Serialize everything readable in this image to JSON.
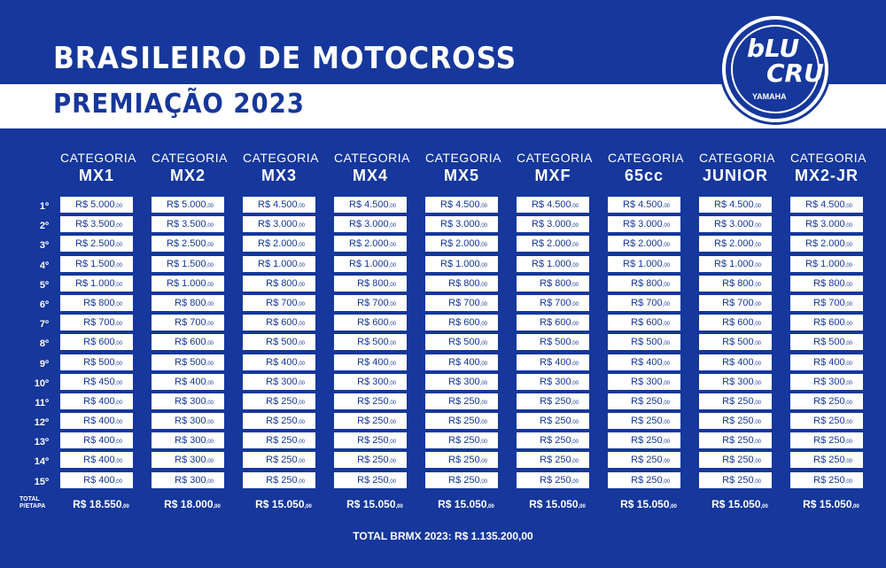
{
  "title": "BRASILEIRO DE MOTOCROSS",
  "subtitle": "PREMIAÇÃO 2023",
  "logo": {
    "line1": "bLU",
    "line2": "CRU",
    "brand": "YAMAHA"
  },
  "positions": [
    "1º",
    "2º",
    "3º",
    "4º",
    "5º",
    "6º",
    "7º",
    "8º",
    "9º",
    "10º",
    "11º",
    "12º",
    "13º",
    "14º",
    "15º"
  ],
  "total_label_1": "TOTAL",
  "total_label_2": "P/ETAPA",
  "categories": [
    {
      "label": "CATEGORIA",
      "name": "MX1",
      "prizes": [
        "R$ 5.000",
        "R$ 3.500",
        "R$ 2.500",
        "R$ 1.500",
        "R$ 1.000",
        "R$ 800",
        "R$ 700",
        "R$ 600",
        "R$ 500",
        "R$ 450",
        "R$ 400",
        "R$ 400",
        "R$ 400",
        "R$ 400",
        "R$ 400"
      ],
      "total": "R$ 18.550"
    },
    {
      "label": "CATEGORIA",
      "name": "MX2",
      "prizes": [
        "R$ 5.000",
        "R$ 3.500",
        "R$ 2.500",
        "R$ 1.500",
        "R$ 1.000",
        "R$ 800",
        "R$ 700",
        "R$ 600",
        "R$ 500",
        "R$ 400",
        "R$ 300",
        "R$ 300",
        "R$ 300",
        "R$ 300",
        "R$ 300"
      ],
      "total": "R$ 18.000"
    },
    {
      "label": "CATEGORIA",
      "name": "MX3",
      "prizes": [
        "R$ 4.500",
        "R$ 3.000",
        "R$ 2.000",
        "R$ 1.000",
        "R$ 800",
        "R$ 700",
        "R$ 600",
        "R$ 500",
        "R$ 400",
        "R$ 300",
        "R$ 250",
        "R$ 250",
        "R$ 250",
        "R$ 250",
        "R$ 250"
      ],
      "total": "R$ 15.050"
    },
    {
      "label": "CATEGORIA",
      "name": "MX4",
      "prizes": [
        "R$ 4.500",
        "R$ 3.000",
        "R$ 2.000",
        "R$ 1.000",
        "R$ 800",
        "R$ 700",
        "R$ 600",
        "R$ 500",
        "R$ 400",
        "R$ 300",
        "R$ 250",
        "R$ 250",
        "R$ 250",
        "R$ 250",
        "R$ 250"
      ],
      "total": "R$ 15.050"
    },
    {
      "label": "CATEGORIA",
      "name": "MX5",
      "prizes": [
        "R$ 4.500",
        "R$ 3.000",
        "R$ 2.000",
        "R$ 1.000",
        "R$ 800",
        "R$ 700",
        "R$ 600",
        "R$ 500",
        "R$ 400",
        "R$ 300",
        "R$ 250",
        "R$ 250",
        "R$ 250",
        "R$ 250",
        "R$ 250"
      ],
      "total": "R$ 15.050"
    },
    {
      "label": "CATEGORIA",
      "name": "MXF",
      "prizes": [
        "R$ 4.500",
        "R$ 3.000",
        "R$ 2.000",
        "R$ 1.000",
        "R$ 800",
        "R$ 700",
        "R$ 600",
        "R$ 500",
        "R$ 400",
        "R$ 300",
        "R$ 250",
        "R$ 250",
        "R$ 250",
        "R$ 250",
        "R$ 250"
      ],
      "total": "R$ 15.050"
    },
    {
      "label": "CATEGORIA",
      "name": "65cc",
      "prizes": [
        "R$ 4.500",
        "R$ 3.000",
        "R$ 2.000",
        "R$ 1.000",
        "R$ 800",
        "R$ 700",
        "R$ 600",
        "R$ 500",
        "R$ 400",
        "R$ 300",
        "R$ 250",
        "R$ 250",
        "R$ 250",
        "R$ 250",
        "R$ 250"
      ],
      "total": "R$ 15.050"
    },
    {
      "label": "CATEGORIA",
      "name": "JUNIOR",
      "prizes": [
        "R$ 4.500",
        "R$ 3.000",
        "R$ 2.000",
        "R$ 1.000",
        "R$ 800",
        "R$ 700",
        "R$ 600",
        "R$ 500",
        "R$ 400",
        "R$ 300",
        "R$ 250",
        "R$ 250",
        "R$ 250",
        "R$ 250",
        "R$ 250"
      ],
      "total": "R$ 15.050"
    },
    {
      "label": "CATEGORIA",
      "name": "MX2-JR",
      "prizes": [
        "R$ 4.500",
        "R$ 3.000",
        "R$ 2.000",
        "R$ 1.000",
        "R$ 800",
        "R$ 700",
        "R$ 600",
        "R$ 500",
        "R$ 400",
        "R$ 300",
        "R$ 250",
        "R$ 250",
        "R$ 250",
        "R$ 250",
        "R$ 250"
      ],
      "total": "R$ 15.050"
    }
  ],
  "cents": ",00",
  "grand_total": "TOTAL BRMX 2023: R$ 1.135.200,00",
  "colors": {
    "background": "#16379b",
    "cell_bg": "#ffffff",
    "text": "#ffffff"
  }
}
